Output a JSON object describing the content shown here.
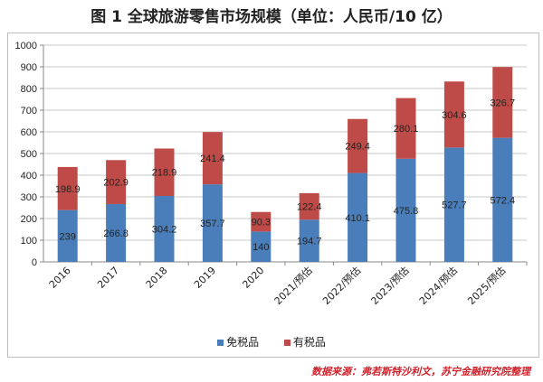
{
  "chart_data": {
    "type": "bar",
    "stacked": true,
    "title": "图 1  全球旅游零售市场规模（单位：人民币/10 亿）",
    "categories": [
      "2016",
      "2017",
      "2018",
      "2019",
      "2020",
      "2021/预估",
      "2022/预估",
      "2023/预估",
      "2024/预估",
      "2025/预估"
    ],
    "series": [
      {
        "name": "免税品",
        "color": "#4a7ebb",
        "values": [
          239,
          266.8,
          304.2,
          357.7,
          140,
          194.7,
          410.1,
          475.8,
          527.7,
          572.4
        ]
      },
      {
        "name": "有税品",
        "color": "#be4b48",
        "values": [
          198.9,
          202.9,
          218.9,
          241.4,
          90.3,
          122.4,
          249.4,
          280.1,
          304.6,
          326.7
        ]
      }
    ],
    "ylim": [
      0,
      1000
    ],
    "yticks": [
      0,
      100,
      200,
      300,
      400,
      500,
      600,
      700,
      800,
      900,
      1000
    ],
    "grid": true,
    "legend": "bottom",
    "source": "数据来源：弗若斯特沙利文，苏宁金融研究院整理"
  }
}
